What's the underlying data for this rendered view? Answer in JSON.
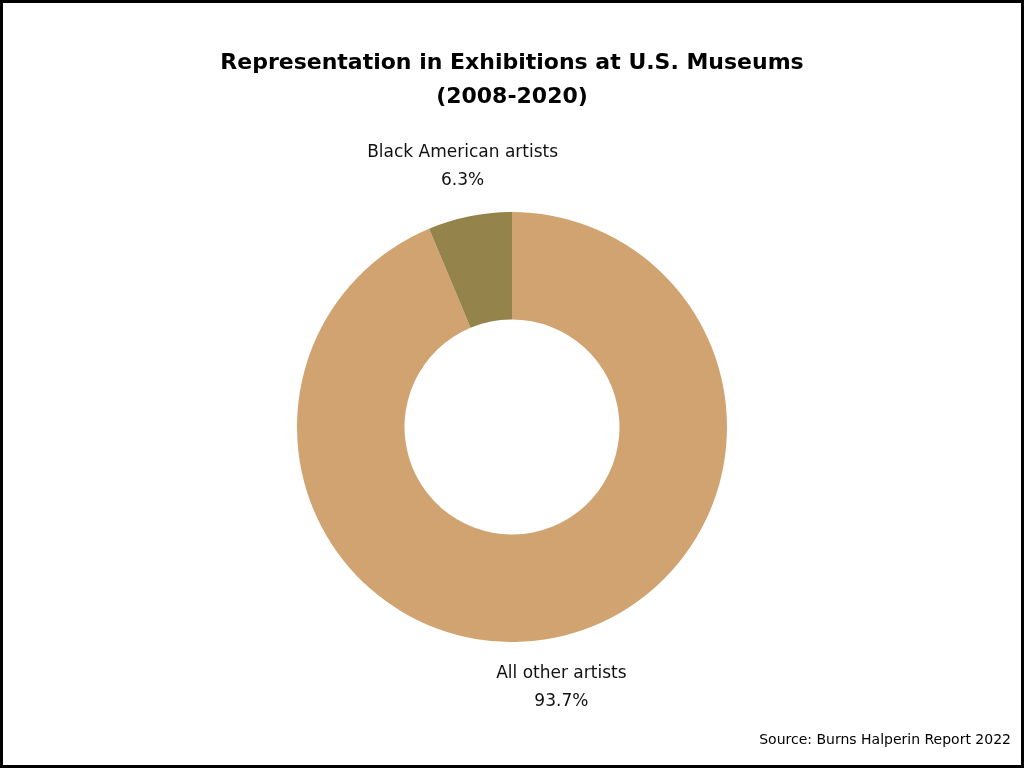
{
  "chart_data": {
    "type": "donut",
    "title": "Representation in Exhibitions at U.S. Museums (2008-2020)",
    "categories": [
      "All other artists",
      "Black American artists"
    ],
    "values": [
      93.7,
      6.3
    ],
    "colors": [
      "#d0a370",
      "#95834c"
    ],
    "value_labels": [
      "93.7%",
      "6.3%"
    ],
    "annotations": [
      "Source: Burns Halperin Report 2022"
    ]
  }
}
